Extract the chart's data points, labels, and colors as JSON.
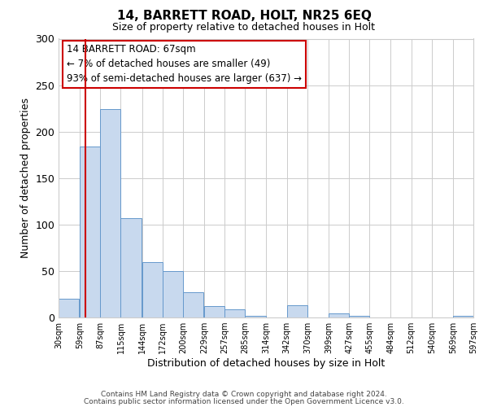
{
  "title1": "14, BARRETT ROAD, HOLT, NR25 6EQ",
  "title2": "Size of property relative to detached houses in Holt",
  "xlabel": "Distribution of detached houses by size in Holt",
  "ylabel": "Number of detached properties",
  "bar_left_edges": [
    30,
    59,
    87,
    115,
    144,
    172,
    200,
    229,
    257,
    285,
    314,
    342,
    370,
    399,
    427,
    455,
    484,
    512,
    540,
    569
  ],
  "bar_heights": [
    20,
    184,
    224,
    107,
    60,
    50,
    27,
    12,
    9,
    2,
    0,
    13,
    0,
    4,
    2,
    0,
    0,
    0,
    0,
    2
  ],
  "bin_width": 28,
  "bar_facecolor": "#c8d9ee",
  "bar_edgecolor": "#6699cc",
  "xlim_left": 30,
  "xlim_right": 597,
  "ylim_top": 300,
  "ylim_bottom": 0,
  "x_tick_labels": [
    "30sqm",
    "59sqm",
    "87sqm",
    "115sqm",
    "144sqm",
    "172sqm",
    "200sqm",
    "229sqm",
    "257sqm",
    "285sqm",
    "314sqm",
    "342sqm",
    "370sqm",
    "399sqm",
    "427sqm",
    "455sqm",
    "484sqm",
    "512sqm",
    "540sqm",
    "569sqm",
    "597sqm"
  ],
  "x_tick_positions": [
    30,
    59,
    87,
    115,
    144,
    172,
    200,
    229,
    257,
    285,
    314,
    342,
    370,
    399,
    427,
    455,
    484,
    512,
    540,
    569,
    597
  ],
  "y_ticks": [
    0,
    50,
    100,
    150,
    200,
    250,
    300
  ],
  "vline_x": 67,
  "vline_color": "#cc0000",
  "annotation_title": "14 BARRETT ROAD: 67sqm",
  "annotation_line1": "← 7% of detached houses are smaller (49)",
  "annotation_line2": "93% of semi-detached houses are larger (637) →",
  "annotation_box_color": "#cc0000",
  "grid_color": "#cccccc",
  "background_color": "#ffffff",
  "footnote1": "Contains HM Land Registry data © Crown copyright and database right 2024.",
  "footnote2": "Contains public sector information licensed under the Open Government Licence v3.0."
}
